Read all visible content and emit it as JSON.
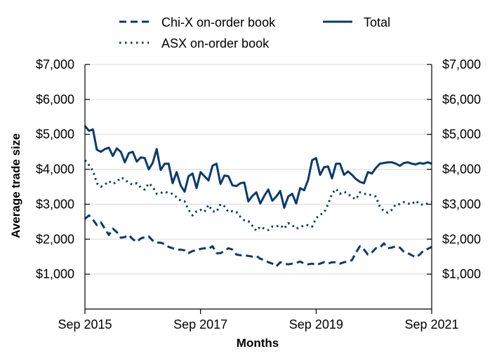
{
  "chart_data": {
    "type": "line",
    "xlabel": "Months",
    "ylabel": "Average trade size",
    "x_ticks": [
      "Sep 2015",
      "Sep 2017",
      "Sep 2019",
      "Sep 2021"
    ],
    "y_ticks": [
      "$1,000",
      "$2,000",
      "$3,000",
      "$4,000",
      "$5,000",
      "$6,000",
      "$7,000"
    ],
    "y_tick_values": [
      1000,
      2000,
      3000,
      4000,
      5000,
      6000,
      7000
    ],
    "ylim": [
      0,
      7000
    ],
    "x_start": "Sep 2015",
    "x_end": "Sep 2021",
    "grid": "horizontal",
    "dual_y_axis": true,
    "legend_position": "top",
    "series": [
      {
        "name": "Chi-X on-order book",
        "style": "dashed",
        "color": "#0b3a6b",
        "values": [
          2580,
          2680,
          2560,
          2400,
          2480,
          2300,
          2120,
          2300,
          2200,
          2040,
          2060,
          2120,
          2000,
          1920,
          2020,
          2060,
          2080,
          1960,
          1900,
          1900,
          1860,
          1780,
          1740,
          1700,
          1700,
          1680,
          1600,
          1660,
          1680,
          1720,
          1740,
          1720,
          1800,
          1600,
          1600,
          1660,
          1740,
          1700,
          1560,
          1540,
          1540,
          1520,
          1500,
          1520,
          1440,
          1400,
          1340,
          1300,
          1220,
          1340,
          1300,
          1280,
          1300,
          1320,
          1360,
          1300,
          1280,
          1300,
          1260,
          1300,
          1340,
          1300,
          1340,
          1340,
          1300,
          1340,
          1360,
          1400,
          1620,
          1800,
          1700,
          1560,
          1620,
          1740,
          1760,
          1880,
          1740,
          1760,
          1800,
          1760,
          1640,
          1600,
          1540,
          1480,
          1560,
          1680,
          1720,
          1780
        ]
      },
      {
        "name": "ASX on-order book",
        "style": "dotted",
        "color": "#0b3a6b",
        "values": [
          4260,
          4120,
          3960,
          3600,
          3500,
          3560,
          3660,
          3580,
          3640,
          3760,
          3720,
          3600,
          3560,
          3600,
          3480,
          3420,
          3600,
          3500,
          3300,
          3320,
          3360,
          3320,
          3300,
          3200,
          3100,
          3080,
          2840,
          2680,
          2800,
          2840,
          2780,
          2980,
          2800,
          2780,
          3000,
          2940,
          2780,
          2800,
          2780,
          2640,
          2540,
          2520,
          2380,
          2240,
          2360,
          2300,
          2260,
          2360,
          2360,
          2400,
          2300,
          2460,
          2400,
          2300,
          2340,
          2400,
          2400,
          2360,
          2600,
          2700,
          2760,
          3000,
          3300,
          3440,
          3300,
          3360,
          3300,
          3200,
          3140,
          3340,
          3300,
          3280,
          3260,
          3220,
          2920,
          2800,
          2760,
          2840,
          3000,
          3000,
          3060,
          3020,
          3000,
          3100,
          3000,
          2980,
          3020,
          3060
        ]
      },
      {
        "name": "Total",
        "style": "solid",
        "color": "#0b3a6b",
        "values": [
          5240,
          5100,
          5140,
          4560,
          4500,
          4580,
          4620,
          4380,
          4600,
          4500,
          4200,
          4460,
          4500,
          4220,
          4340,
          4320,
          4000,
          4180,
          4580,
          3980,
          4160,
          4160,
          3600,
          3920,
          3540,
          3360,
          3800,
          3880,
          3460,
          3920,
          3800,
          3680,
          4100,
          4160,
          3580,
          3820,
          3800,
          3540,
          3520,
          3600,
          3620,
          3080,
          3240,
          3340,
          3020,
          3240,
          3420,
          3100,
          3220,
          3380,
          2900,
          3220,
          3300,
          3020,
          3460,
          3400,
          3700,
          4260,
          4320,
          3840,
          4060,
          4080,
          3740,
          4160,
          4160,
          3840,
          3940,
          3840,
          3720,
          3640,
          3600,
          3920,
          3880,
          4040,
          4160,
          4180,
          4200,
          4200,
          4160,
          4100,
          4180,
          4200,
          4160,
          4140,
          4180,
          4160,
          4200,
          4160
        ]
      }
    ]
  }
}
